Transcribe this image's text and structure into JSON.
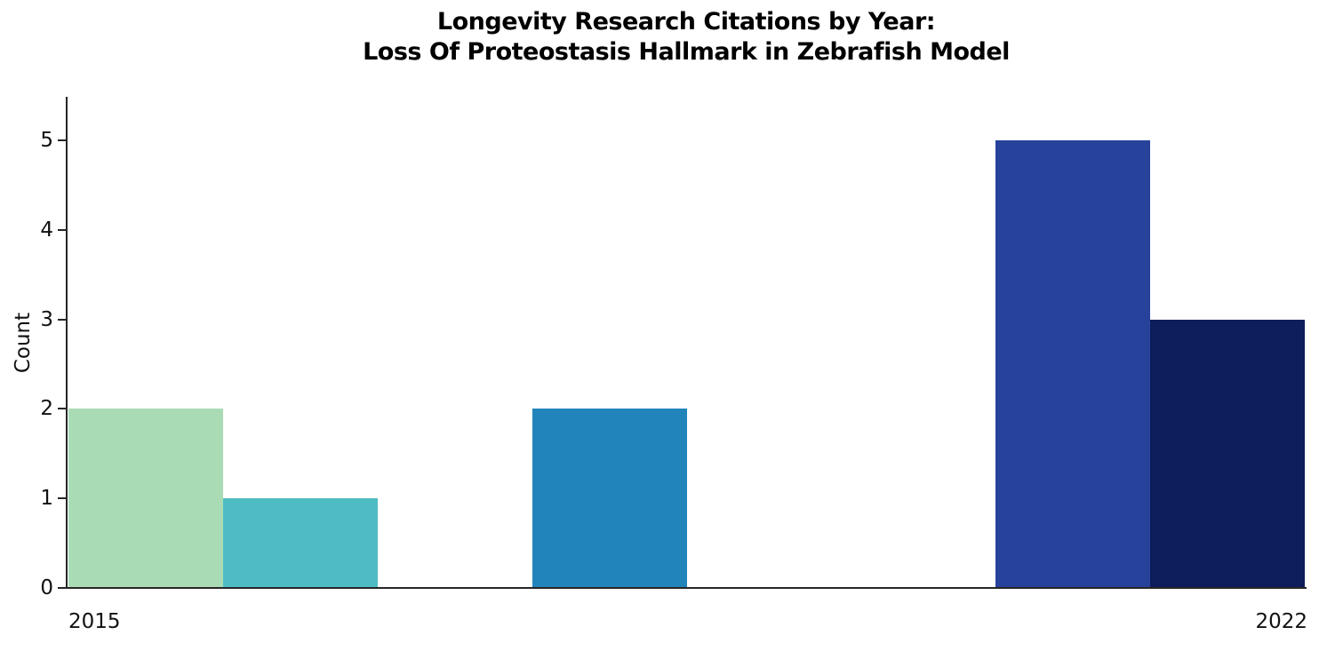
{
  "chart_data": {
    "type": "bar",
    "subtype": "histogram",
    "title": "Longevity Research Citations by Year:\nLoss Of Proteostasis Hallmark in Zebrafish Model",
    "title_lines": [
      "Longevity Research Citations by Year:",
      "Loss Of Proteostasis Hallmark in Zebrafish Model"
    ],
    "xlabel": "",
    "ylabel": "Count",
    "x_tick_labels": [
      "2015",
      "2022"
    ],
    "y_ticks": [
      0,
      1,
      2,
      3,
      4,
      5
    ],
    "ylim": [
      0,
      5.5
    ],
    "x_range": [
      2015,
      2023
    ],
    "n_bins": 8,
    "grid": false,
    "legend": false,
    "categories": [
      "2015",
      "2016",
      "2017",
      "2018",
      "2019",
      "2020",
      "2021",
      "2022"
    ],
    "values": [
      2,
      1,
      0,
      2,
      0,
      0,
      5,
      3
    ],
    "bars": [
      {
        "bin": 0,
        "year": "2015",
        "count": 2,
        "color": "#a9dcb5"
      },
      {
        "bin": 1,
        "year": "2016",
        "count": 1,
        "color": "#4fbcc4"
      },
      {
        "bin": 2,
        "year": "2017",
        "count": 0,
        "color": null
      },
      {
        "bin": 3,
        "year": "2018",
        "count": 2,
        "color": "#2185bb"
      },
      {
        "bin": 4,
        "year": "2019",
        "count": 0,
        "color": null
      },
      {
        "bin": 5,
        "year": "2020",
        "count": 0,
        "color": null
      },
      {
        "bin": 6,
        "year": "2021",
        "count": 5,
        "color": "#27429b"
      },
      {
        "bin": 7,
        "year": "2022",
        "count": 3,
        "color": "#0e1d5b"
      }
    ],
    "axis_color": "#262626",
    "text_color": "#111111",
    "background_color": "#ffffff"
  }
}
